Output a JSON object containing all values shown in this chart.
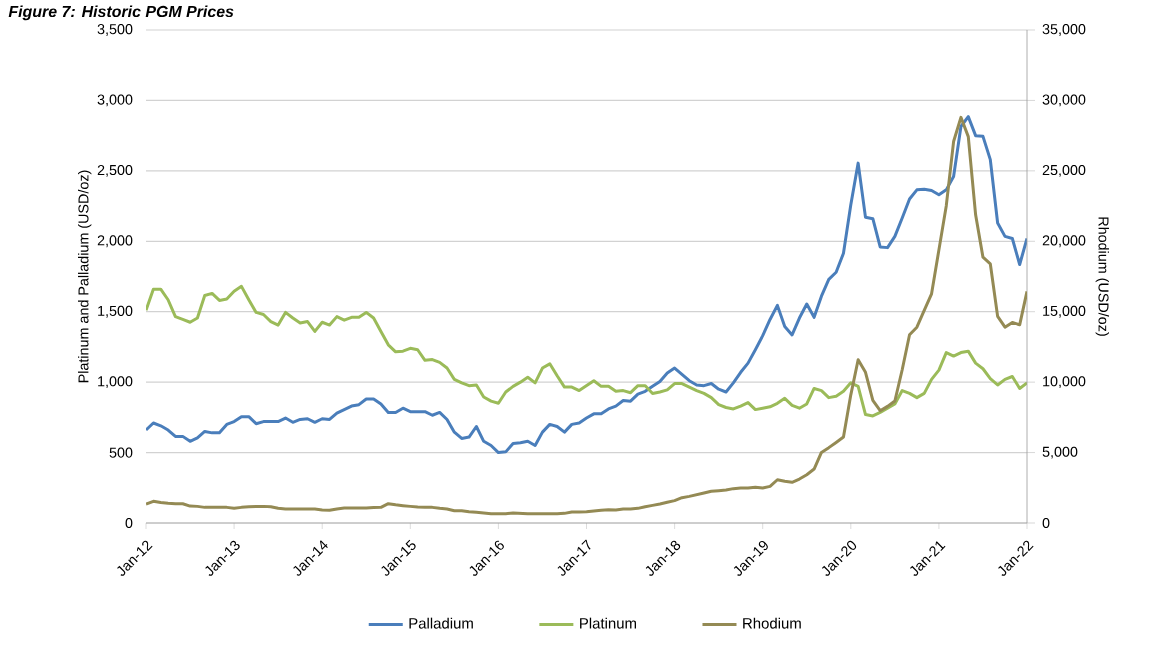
{
  "chart_data": {
    "type": "line",
    "title": "Figure 7: Historic PGM Prices",
    "ylabel": "Platinum and Palladium (USD/oz)",
    "y2label": "Rhodium (USD/oz)",
    "x": [
      "2012-01",
      "2012-02",
      "2012-03",
      "2012-04",
      "2012-05",
      "2012-06",
      "2012-07",
      "2012-08",
      "2012-09",
      "2012-10",
      "2012-11",
      "2012-12",
      "2013-01",
      "2013-02",
      "2013-03",
      "2013-04",
      "2013-05",
      "2013-06",
      "2013-07",
      "2013-08",
      "2013-09",
      "2013-10",
      "2013-11",
      "2013-12",
      "2014-01",
      "2014-02",
      "2014-03",
      "2014-04",
      "2014-05",
      "2014-06",
      "2014-07",
      "2014-08",
      "2014-09",
      "2014-10",
      "2014-11",
      "2014-12",
      "2015-01",
      "2015-02",
      "2015-03",
      "2015-04",
      "2015-05",
      "2015-06",
      "2015-07",
      "2015-08",
      "2015-09",
      "2015-10",
      "2015-11",
      "2015-12",
      "2016-01",
      "2016-02",
      "2016-03",
      "2016-04",
      "2016-05",
      "2016-06",
      "2016-07",
      "2016-08",
      "2016-09",
      "2016-10",
      "2016-11",
      "2016-12",
      "2017-01",
      "2017-02",
      "2017-03",
      "2017-04",
      "2017-05",
      "2017-06",
      "2017-07",
      "2017-08",
      "2017-09",
      "2017-10",
      "2017-11",
      "2017-12",
      "2018-01",
      "2018-02",
      "2018-03",
      "2018-04",
      "2018-05",
      "2018-06",
      "2018-07",
      "2018-08",
      "2018-09",
      "2018-10",
      "2018-11",
      "2018-12",
      "2019-01",
      "2019-02",
      "2019-03",
      "2019-04",
      "2019-05",
      "2019-06",
      "2019-07",
      "2019-08",
      "2019-09",
      "2019-10",
      "2019-11",
      "2019-12",
      "2020-01",
      "2020-02",
      "2020-03",
      "2020-04",
      "2020-05",
      "2020-06",
      "2020-07",
      "2020-08",
      "2020-09",
      "2020-10",
      "2020-11",
      "2020-12",
      "2021-01",
      "2021-02",
      "2021-03",
      "2021-04",
      "2021-05",
      "2021-06",
      "2021-07",
      "2021-08",
      "2021-09",
      "2021-10",
      "2021-11",
      "2021-12",
      "2022-01"
    ],
    "series": [
      {
        "name": "Palladium",
        "color": "#4a7ebb",
        "values": [
          660,
          710,
          690,
          660,
          615,
          615,
          580,
          605,
          650,
          640,
          640,
          700,
          720,
          755,
          755,
          705,
          720,
          720,
          720,
          745,
          715,
          735,
          740,
          715,
          740,
          735,
          780,
          805,
          830,
          840,
          880,
          880,
          845,
          785,
          785,
          815,
          790,
          790,
          790,
          765,
          785,
          735,
          645,
          600,
          610,
          685,
          580,
          550,
          500,
          505,
          565,
          570,
          580,
          550,
          645,
          700,
          685,
          645,
          700,
          710,
          745,
          775,
          775,
          810,
          830,
          870,
          865,
          915,
          935,
          970,
          1005,
          1065,
          1100,
          1055,
          1010,
          980,
          975,
          990,
          950,
          930,
          995,
          1070,
          1135,
          1230,
          1330,
          1445,
          1545,
          1395,
          1335,
          1455,
          1555,
          1460,
          1610,
          1730,
          1780,
          1915,
          2260,
          2555,
          2170,
          2160,
          1960,
          1955,
          2035,
          2165,
          2300,
          2365,
          2370,
          2360,
          2330,
          2365,
          2460,
          2815,
          2885,
          2750,
          2745,
          2580,
          2130,
          2035,
          2020,
          1835,
          2020
        ]
      },
      {
        "name": "Platinum",
        "color": "#9bbb59",
        "values": [
          1510,
          1660,
          1660,
          1585,
          1465,
          1445,
          1425,
          1455,
          1615,
          1630,
          1580,
          1590,
          1645,
          1680,
          1585,
          1495,
          1480,
          1430,
          1405,
          1495,
          1455,
          1420,
          1430,
          1360,
          1425,
          1405,
          1465,
          1440,
          1460,
          1460,
          1495,
          1455,
          1360,
          1265,
          1215,
          1220,
          1240,
          1230,
          1155,
          1160,
          1140,
          1100,
          1020,
          995,
          975,
          980,
          895,
          865,
          850,
          930,
          970,
          1000,
          1035,
          995,
          1100,
          1130,
          1045,
          965,
          965,
          940,
          975,
          1010,
          970,
          970,
          935,
          940,
          925,
          975,
          975,
          920,
          930,
          945,
          990,
          990,
          965,
          940,
          920,
          890,
          840,
          820,
          810,
          830,
          855,
          805,
          815,
          825,
          850,
          885,
          835,
          815,
          845,
          955,
          940,
          890,
          900,
          935,
          995,
          970,
          770,
          760,
          785,
          815,
          845,
          940,
          920,
          890,
          920,
          1020,
          1085,
          1210,
          1185,
          1210,
          1220,
          1135,
          1095,
          1025,
          980,
          1020,
          1040,
          955,
          995
        ]
      },
      {
        "name": "Rhodium",
        "color": "#948a54",
        "axis": "y2",
        "values": [
          1350,
          1540,
          1450,
          1400,
          1370,
          1370,
          1200,
          1180,
          1110,
          1110,
          1110,
          1110,
          1050,
          1110,
          1150,
          1180,
          1180,
          1150,
          1050,
          1000,
          990,
          990,
          990,
          990,
          920,
          900,
          1000,
          1060,
          1060,
          1060,
          1060,
          1100,
          1110,
          1370,
          1290,
          1230,
          1180,
          1135,
          1110,
          1110,
          1040,
          990,
          875,
          875,
          805,
          755,
          710,
          660,
          660,
          660,
          710,
          685,
          660,
          660,
          660,
          660,
          660,
          685,
          780,
          780,
          805,
          850,
          900,
          945,
          920,
          990,
          990,
          1040,
          1160,
          1250,
          1350,
          1470,
          1590,
          1800,
          1890,
          2010,
          2130,
          2250,
          2290,
          2340,
          2440,
          2480,
          2480,
          2530,
          2480,
          2600,
          3070,
          2960,
          2890,
          3120,
          3430,
          3830,
          5010,
          5350,
          5720,
          6100,
          9100,
          11590,
          10700,
          8700,
          7970,
          8280,
          8660,
          10880,
          13360,
          13900,
          15090,
          16270,
          19390,
          22510,
          27080,
          28800,
          27430,
          21880,
          18870,
          18400,
          14670,
          13900,
          14240,
          14070,
          16440
        ]
      }
    ],
    "xlim": [
      "2012-01",
      "2022-01"
    ],
    "xticks": [
      {
        "value": "2012-01",
        "label": "Jan-12"
      },
      {
        "value": "2013-01",
        "label": "Jan-13"
      },
      {
        "value": "2014-01",
        "label": "Jan-14"
      },
      {
        "value": "2015-01",
        "label": "Jan-15"
      },
      {
        "value": "2016-01",
        "label": "Jan-16"
      },
      {
        "value": "2017-01",
        "label": "Jan-17"
      },
      {
        "value": "2018-01",
        "label": "Jan-18"
      },
      {
        "value": "2019-01",
        "label": "Jan-19"
      },
      {
        "value": "2020-01",
        "label": "Jan-20"
      },
      {
        "value": "2021-01",
        "label": "Jan-21"
      },
      {
        "value": "2022-01",
        "label": "Jan-22"
      }
    ],
    "ylim": [
      0,
      3500
    ],
    "yticks": [
      0,
      500,
      {
        "value": 1000,
        "label": "1,000"
      },
      {
        "value": 1500,
        "label": "1,500"
      },
      {
        "value": 2000,
        "label": "2,000"
      },
      {
        "value": 2500,
        "label": "2,500"
      },
      {
        "value": 3000,
        "label": "3,000"
      },
      {
        "value": 3500,
        "label": "3,500"
      }
    ],
    "y2lim": [
      0,
      35000
    ],
    "y2ticks": [
      0,
      {
        "value": 5000,
        "label": "5,000"
      },
      {
        "value": 10000,
        "label": "10,000"
      },
      {
        "value": 15000,
        "label": "15,000"
      },
      {
        "value": 20000,
        "label": "20,000"
      },
      {
        "value": 25000,
        "label": "25,000"
      },
      {
        "value": 30000,
        "label": "30,000"
      },
      {
        "value": 35000,
        "label": "35,000"
      }
    ],
    "grid": "y",
    "legend": "bottom"
  }
}
